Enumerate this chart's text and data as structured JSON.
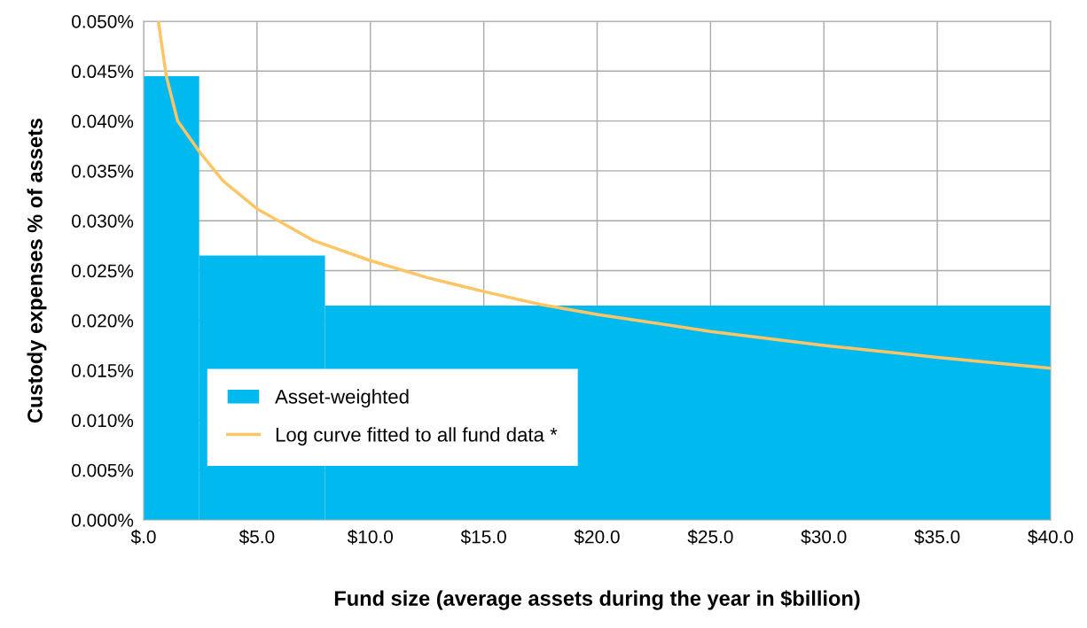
{
  "chart_data": {
    "type": "histogram",
    "xlabel": "Fund size (average assets during the year in $billion)",
    "ylabel": "Custody expenses % of assets",
    "bins": [
      0,
      2.45,
      8.0,
      40
    ],
    "series": [
      {
        "name": "Asset-weighted",
        "color": "#00b9ee",
        "values": [
          0.0445,
          0.0265,
          0.0215
        ]
      },
      {
        "name": "Log curve fitted to all fund data *",
        "type": "line",
        "color": "#fdc566",
        "x": [
          0.65,
          1.0,
          1.5,
          2.5,
          3.5,
          5,
          7.5,
          10,
          12.5,
          15,
          17.5,
          20,
          25,
          30,
          35,
          40
        ],
        "values": [
          0.05,
          0.0445,
          0.04,
          0.0368,
          0.034,
          0.0312,
          0.028,
          0.026,
          0.0243,
          0.0229,
          0.0216,
          0.0206,
          0.0189,
          0.0175,
          0.0163,
          0.0152
        ]
      }
    ],
    "xlim": [
      0,
      40
    ],
    "xticks": [
      {
        "value": 0,
        "label": "$.0"
      },
      {
        "value": 5,
        "label": "$5.0"
      },
      {
        "value": 10,
        "label": "$10.0"
      },
      {
        "value": 15,
        "label": "$15.0"
      },
      {
        "value": 20,
        "label": "$20.0"
      },
      {
        "value": 25,
        "label": "$25.0"
      },
      {
        "value": 30,
        "label": "$30.0"
      },
      {
        "value": 35,
        "label": "$35.0"
      },
      {
        "value": 40,
        "label": "$40.0"
      }
    ],
    "ylim": [
      0,
      0.05
    ],
    "yticks": [
      {
        "value": 0,
        "label": "0.000%"
      },
      {
        "value": 0.005,
        "label": "0.005%"
      },
      {
        "value": 0.01,
        "label": "0.010%"
      },
      {
        "value": 0.015,
        "label": "0.015%"
      },
      {
        "value": 0.02,
        "label": "0.020%"
      },
      {
        "value": 0.025,
        "label": "0.025%"
      },
      {
        "value": 0.03,
        "label": "0.030%"
      },
      {
        "value": 0.035,
        "label": "0.035%"
      },
      {
        "value": 0.04,
        "label": "0.040%"
      },
      {
        "value": 0.045,
        "label": "0.045%"
      },
      {
        "value": 0.05,
        "label": "0.050%"
      }
    ],
    "grid": true,
    "legend": "bottom left"
  }
}
